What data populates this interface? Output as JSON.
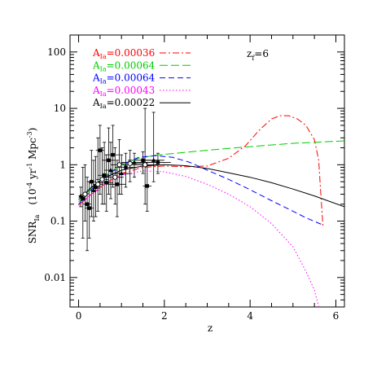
{
  "chart_data": {
    "type": "line",
    "xlabel": "z",
    "ylabel_main": "SNR",
    "ylabel_sub": "Ia",
    "ylabel_units": "(10",
    "ylabel_exp1": "-4",
    "ylabel_mid": " yr",
    "ylabel_exp2": "-1",
    "ylabel_mid2": " Mpc",
    "ylabel_exp3": "-3",
    "ylabel_end": ")",
    "annotation_main": "z",
    "annotation_sub": "f",
    "annotation_value": "=6",
    "xlim": [
      -0.2,
      6.2
    ],
    "ylim": [
      0.003,
      200
    ],
    "yscale": "log",
    "xticks": [
      0,
      2,
      4,
      6
    ],
    "xtick_labels": [
      "0",
      "2",
      "4",
      "6"
    ],
    "yticks": [
      0.01,
      0.1,
      1,
      10,
      100
    ],
    "ytick_labels": [
      "0.01",
      "0.1",
      "1",
      "10",
      "100"
    ],
    "legend_prefix": "A",
    "legend_sub": "Ia",
    "series": [
      {
        "name": "=0.00036",
        "color": "#ff0000",
        "dash": "dash-dot",
        "points": [
          [
            0,
            0.19
          ],
          [
            0.3,
            0.3
          ],
          [
            0.6,
            0.45
          ],
          [
            1.0,
            0.7
          ],
          [
            1.5,
            0.9
          ],
          [
            2.0,
            0.95
          ],
          [
            2.5,
            0.92
          ],
          [
            3.0,
            0.95
          ],
          [
            3.5,
            1.3
          ],
          [
            3.9,
            2.2
          ],
          [
            4.2,
            4.0
          ],
          [
            4.5,
            6.5
          ],
          [
            4.7,
            7.4
          ],
          [
            4.9,
            7.4
          ],
          [
            5.1,
            6.5
          ],
          [
            5.3,
            5.0
          ],
          [
            5.5,
            2.8
          ],
          [
            5.6,
            1.2
          ],
          [
            5.65,
            0.3
          ],
          [
            5.7,
            0.08
          ]
        ]
      },
      {
        "name": "=0.00064",
        "color": "#00cc00",
        "dash": "long-dash",
        "points": [
          [
            0,
            0.22
          ],
          [
            0.3,
            0.38
          ],
          [
            0.6,
            0.62
          ],
          [
            1.0,
            1.0
          ],
          [
            1.4,
            1.3
          ],
          [
            1.8,
            1.48
          ],
          [
            2.2,
            1.58
          ],
          [
            2.8,
            1.75
          ],
          [
            3.5,
            1.95
          ],
          [
            4.2,
            2.15
          ],
          [
            5.0,
            2.4
          ],
          [
            6.2,
            2.65
          ]
        ]
      },
      {
        "name": "=0.00064",
        "color": "#0000ff",
        "dash": "dashed",
        "points": [
          [
            0,
            0.2
          ],
          [
            0.3,
            0.36
          ],
          [
            0.6,
            0.6
          ],
          [
            1.0,
            1.0
          ],
          [
            1.4,
            1.35
          ],
          [
            1.8,
            1.45
          ],
          [
            2.2,
            1.35
          ],
          [
            2.6,
            1.1
          ],
          [
            3.0,
            0.8
          ],
          [
            3.5,
            0.55
          ],
          [
            4.0,
            0.36
          ],
          [
            4.5,
            0.23
          ],
          [
            5.0,
            0.15
          ],
          [
            5.3,
            0.115
          ],
          [
            5.7,
            0.085
          ]
        ]
      },
      {
        "name": "=0.00043",
        "color": "#ff00ff",
        "dash": "dotted",
        "points": [
          [
            0,
            0.19
          ],
          [
            0.3,
            0.3
          ],
          [
            0.6,
            0.45
          ],
          [
            1.0,
            0.65
          ],
          [
            1.5,
            0.78
          ],
          [
            2.0,
            0.75
          ],
          [
            2.5,
            0.62
          ],
          [
            3.0,
            0.45
          ],
          [
            3.5,
            0.3
          ],
          [
            4.0,
            0.18
          ],
          [
            4.5,
            0.09
          ],
          [
            5.0,
            0.035
          ],
          [
            5.3,
            0.013
          ],
          [
            5.5,
            0.006
          ],
          [
            5.6,
            0.003
          ]
        ]
      },
      {
        "name": "=0.00022",
        "color": "#000000",
        "dash": "solid",
        "points": [
          [
            0,
            0.24
          ],
          [
            0.3,
            0.4
          ],
          [
            0.6,
            0.58
          ],
          [
            1.0,
            0.8
          ],
          [
            1.5,
            0.95
          ],
          [
            2.0,
            1.0
          ],
          [
            2.5,
            0.96
          ],
          [
            3.0,
            0.86
          ],
          [
            3.5,
            0.72
          ],
          [
            4.0,
            0.6
          ],
          [
            4.5,
            0.48
          ],
          [
            5.0,
            0.37
          ],
          [
            5.5,
            0.28
          ],
          [
            6.2,
            0.18
          ]
        ]
      }
    ],
    "observations": [
      {
        "x": 0.05,
        "y": 0.28,
        "ylo": 0.18,
        "yhi": 0.4,
        "xerr": 0.05,
        "marker": "triangle"
      },
      {
        "x": 0.1,
        "y": 0.25,
        "ylo": 0.05,
        "yhi": 0.9,
        "xerr": 0.05,
        "marker": "square"
      },
      {
        "x": 0.15,
        "y": 0.3,
        "ylo": 0.1,
        "yhi": 1.0,
        "xerr": 0.08,
        "marker": "circle"
      },
      {
        "x": 0.2,
        "y": 0.2,
        "ylo": 0.03,
        "yhi": 0.6,
        "xerr": 0.1,
        "marker": "square"
      },
      {
        "x": 0.25,
        "y": 0.17,
        "ylo": 0.05,
        "yhi": 0.5,
        "xerr": 0.1,
        "marker": "square"
      },
      {
        "x": 0.3,
        "y": 0.5,
        "ylo": 0.12,
        "yhi": 1.8,
        "xerr": 0.1,
        "marker": "square"
      },
      {
        "x": 0.35,
        "y": 0.35,
        "ylo": 0.1,
        "yhi": 1.2,
        "xerr": 0.12,
        "marker": "triangle"
      },
      {
        "x": 0.4,
        "y": 0.4,
        "ylo": 0.12,
        "yhi": 1.4,
        "xerr": 0.1,
        "marker": "square"
      },
      {
        "x": 0.45,
        "y": 0.45,
        "ylo": 0.15,
        "yhi": 3.0,
        "xerr": 0.12,
        "marker": "circle"
      },
      {
        "x": 0.5,
        "y": 1.8,
        "ylo": 0.3,
        "yhi": 5.0,
        "xerr": 0.1,
        "marker": "square"
      },
      {
        "x": 0.55,
        "y": 0.55,
        "ylo": 0.2,
        "yhi": 2.0,
        "xerr": 0.15,
        "marker": "circle"
      },
      {
        "x": 0.6,
        "y": 0.65,
        "ylo": 0.2,
        "yhi": 2.5,
        "xerr": 0.15,
        "marker": "square"
      },
      {
        "x": 0.65,
        "y": 0.48,
        "ylo": 0.15,
        "yhi": 1.5,
        "xerr": 0.15,
        "marker": "square"
      },
      {
        "x": 0.7,
        "y": 1.2,
        "ylo": 0.3,
        "yhi": 4.5,
        "xerr": 0.15,
        "marker": "square"
      },
      {
        "x": 0.75,
        "y": 0.8,
        "ylo": 0.25,
        "yhi": 2.5,
        "xerr": 0.15,
        "marker": "triangle"
      },
      {
        "x": 0.8,
        "y": 1.5,
        "ylo": 0.4,
        "yhi": 5.0,
        "xerr": 0.15,
        "marker": "square"
      },
      {
        "x": 0.85,
        "y": 0.6,
        "ylo": 0.2,
        "yhi": 2.0,
        "xerr": 0.2,
        "marker": "circle"
      },
      {
        "x": 0.9,
        "y": 0.45,
        "ylo": 0.12,
        "yhi": 1.2,
        "xerr": 0.2,
        "marker": "square"
      },
      {
        "x": 0.95,
        "y": 1.0,
        "ylo": 0.3,
        "yhi": 2.8,
        "xerr": 0.2,
        "marker": "circle"
      },
      {
        "x": 1.0,
        "y": 0.7,
        "ylo": 0.3,
        "yhi": 1.5,
        "xerr": 0.25,
        "marker": "triangle"
      },
      {
        "x": 1.1,
        "y": 0.9,
        "ylo": 0.4,
        "yhi": 1.6,
        "xerr": 0.25,
        "marker": "square"
      },
      {
        "x": 1.2,
        "y": 1.05,
        "ylo": 0.5,
        "yhi": 1.8,
        "xerr": 0.3,
        "marker": "circle"
      },
      {
        "x": 1.3,
        "y": 1.1,
        "ylo": 0.6,
        "yhi": 1.6,
        "xerr": 0.3,
        "marker": "triangle"
      },
      {
        "x": 1.5,
        "y": 1.2,
        "ylo": 0.7,
        "yhi": 1.7,
        "xerr": 0.35,
        "marker": "square"
      },
      {
        "x": 1.55,
        "y": 1.0,
        "ylo": 0.2,
        "yhi": 10.0,
        "xerr": 0.3,
        "marker": "circle"
      },
      {
        "x": 1.6,
        "y": 0.42,
        "ylo": 0.15,
        "yhi": 1.1,
        "xerr": 0.1,
        "marker": "square"
      },
      {
        "x": 1.75,
        "y": 1.2,
        "ylo": 0.5,
        "yhi": 8.5,
        "xerr": 0.25,
        "marker": "triangle"
      },
      {
        "x": 1.85,
        "y": 1.1,
        "ylo": 0.7,
        "yhi": 1.6,
        "xerr": 0.3,
        "marker": "square"
      }
    ]
  }
}
